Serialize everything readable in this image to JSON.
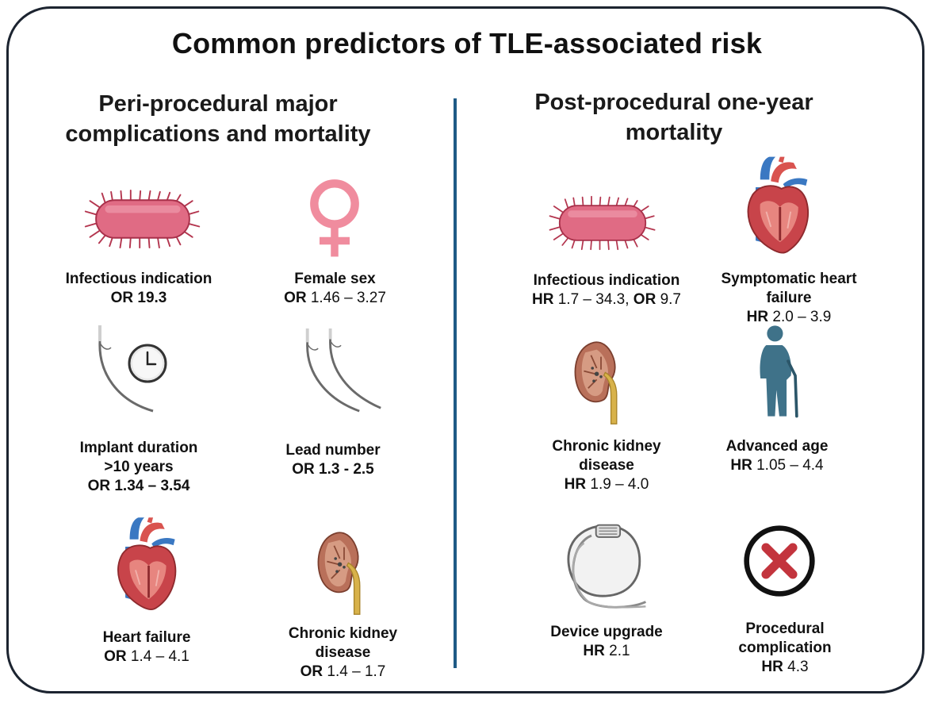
{
  "title": "Common predictors of TLE-associated risk",
  "left_section": {
    "heading_line1": "Peri-procedural major",
    "heading_line2": "complications and mortality",
    "items": [
      {
        "line1": "Infectious indication",
        "stat_prefix": "OR",
        "stat_value": "19.3",
        "icon": "bacterium-icon"
      },
      {
        "line1": "Female sex",
        "stat_prefix": "OR",
        "stat_value": "1.46 – 3.27",
        "icon": "female-symbol-icon"
      },
      {
        "line1": "Implant duration",
        "line2": ">10 years",
        "stat_prefix": "OR",
        "stat_value": "1.34 – 3.54",
        "icon": "lead-clock-icon"
      },
      {
        "line1": "Lead number",
        "stat_prefix": "OR",
        "stat_value": "1.3 - 2.5",
        "icon": "leads-icon"
      },
      {
        "line1": "Heart failure",
        "stat_prefix": "OR",
        "stat_value": "1.4 – 4.1",
        "icon": "heart-icon"
      },
      {
        "line1": "Chronic kidney",
        "line2": "disease",
        "stat_prefix": "OR",
        "stat_value": "1.4 – 1.7",
        "icon": "kidney-icon"
      }
    ]
  },
  "right_section": {
    "heading_line1": "Post-procedural one-year",
    "heading_line2": "mortality",
    "items": [
      {
        "line1": "Infectious indication",
        "stat_prefix": "HR",
        "stat_value": "1.7 – 34.3,",
        "stat_prefix2": "OR",
        "stat_value2": "9.7",
        "icon": "bacterium-icon"
      },
      {
        "line1": "Symptomatic heart",
        "line2": "failure",
        "stat_prefix": "HR",
        "stat_value": "2.0 – 3.9",
        "icon": "heart-icon"
      },
      {
        "line1": "Chronic kidney",
        "line2": "disease",
        "stat_prefix": "HR",
        "stat_value": "1.9 – 4.0",
        "icon": "kidney-icon"
      },
      {
        "line1": "Advanced age",
        "stat_prefix": "HR",
        "stat_value": "1.05 – 4.4",
        "icon": "elderly-person-icon"
      },
      {
        "line1": "Device upgrade",
        "stat_prefix": "HR",
        "stat_value": "2.1",
        "icon": "pacemaker-icon"
      },
      {
        "line1": "Procedural",
        "line2": "complication",
        "stat_prefix": "HR",
        "stat_value": "4.3",
        "icon": "error-cross-icon"
      }
    ]
  },
  "colors": {
    "frame": "#1c2430",
    "divider": "#1f5b86",
    "bacterium": "#e06b84",
    "female": "#f08c9e",
    "heart_red": "#c8444a",
    "vessel_blue": "#3a78c2",
    "kidney": "#b9705a",
    "person": "#3f7289",
    "cross": "#c3343d"
  }
}
